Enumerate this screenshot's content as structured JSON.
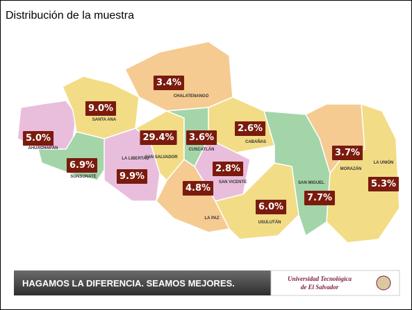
{
  "title": "Distribución de la muestra",
  "regions": [
    {
      "name": "AHUACHAPÁN",
      "share": "5.0%"
    },
    {
      "name": "SANTA ANA",
      "share": "9.0%"
    },
    {
      "name": "CHALATENANGO",
      "share": "3.4%"
    },
    {
      "name": "SONSONATE",
      "share": "6.9%"
    },
    {
      "name": "LA LIBERTAD",
      "share": "9.9%"
    },
    {
      "name": "SAN SALVADOR",
      "share": "29.4%"
    },
    {
      "name": "CUSCATLÁN",
      "share": "3.6%"
    },
    {
      "name": "CABAÑAS",
      "share": "2.6%"
    },
    {
      "name": "SAN VICENTE",
      "share": "2.8%"
    },
    {
      "name": "LA PAZ",
      "share": "4.8%"
    },
    {
      "name": "USULUTÁN",
      "share": "6.0%"
    },
    {
      "name": "SAN MIGUEL",
      "share": "7.7%"
    },
    {
      "name": "MORAZÁN",
      "share": "3.7%"
    },
    {
      "name": "LA UNIÓN",
      "share": "5.3%"
    }
  ],
  "footer": {
    "slogan": "HAGAMOS LA DIFERENCIA. SEAMOS MEJORES.",
    "logo_line1": "Universidad Tecnológica",
    "logo_line2": "de El Salvador"
  }
}
